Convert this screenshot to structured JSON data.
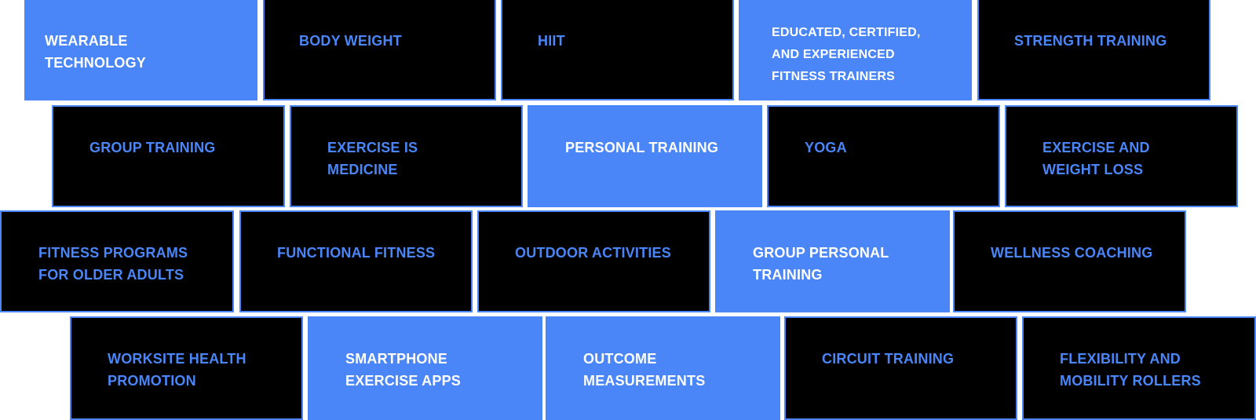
{
  "colors": {
    "accent": "#4a86f7",
    "dark": "#000000",
    "light_text": "#ffffff"
  },
  "rows": [
    {
      "tiles": [
        {
          "label": "WEARABLE TECHNOLOGY",
          "highlighted": true
        },
        {
          "label": "BODY WEIGHT",
          "highlighted": false
        },
        {
          "label": "HIIT",
          "highlighted": false
        },
        {
          "label": "EDUCATED, CERTIFIED, AND EXPERIENCED FITNESS TRAINERS",
          "highlighted": true
        },
        {
          "label": "STRENGTH TRAINING",
          "highlighted": false
        }
      ]
    },
    {
      "tiles": [
        {
          "label": "GROUP TRAINING",
          "highlighted": false
        },
        {
          "label": "EXERCISE IS MEDICINE",
          "highlighted": false
        },
        {
          "label": "PERSONAL TRAINING",
          "highlighted": true
        },
        {
          "label": "YOGA",
          "highlighted": false
        },
        {
          "label": "EXERCISE AND WEIGHT LOSS",
          "highlighted": false
        }
      ]
    },
    {
      "tiles": [
        {
          "label": "FITNESS PROGRAMS FOR OLDER ADULTS",
          "highlighted": false
        },
        {
          "label": "FUNCTIONAL FITNESS",
          "highlighted": false
        },
        {
          "label": "OUTDOOR ACTIVITIES",
          "highlighted": false
        },
        {
          "label": "GROUP PERSONAL TRAINING",
          "highlighted": true
        },
        {
          "label": "WELLNESS COACHING",
          "highlighted": false
        }
      ]
    },
    {
      "tiles": [
        {
          "label": "WORKSITE HEALTH PROMOTION",
          "highlighted": false
        },
        {
          "label": "SMARTPHONE EXERCISE APPS",
          "highlighted": true
        },
        {
          "label": "OUTCOME MEASUREMENTS",
          "highlighted": true
        },
        {
          "label": "CIRCUIT TRAINING",
          "highlighted": false
        },
        {
          "label": "FLEXIBILITY AND MOBILITY ROLLERS",
          "highlighted": false
        }
      ]
    }
  ]
}
